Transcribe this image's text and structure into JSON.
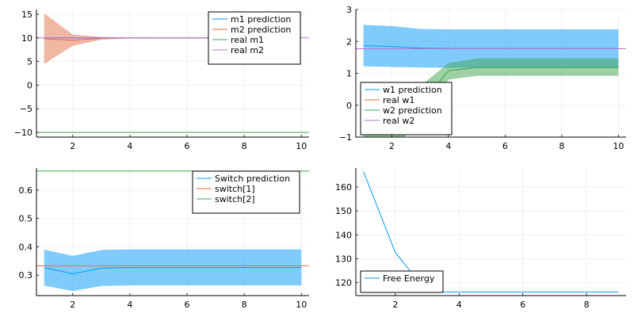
{
  "chart_data": [
    {
      "type": "line",
      "title": "",
      "xlabel": "",
      "ylabel": "",
      "xlim": [
        0.73,
        10.27
      ],
      "ylim": [
        -11.0,
        16.0
      ],
      "xticks": [
        2,
        4,
        6,
        8,
        10
      ],
      "yticks": [
        -10,
        -5,
        0,
        5,
        10,
        15
      ],
      "grid": true,
      "legend_position": "top-right",
      "series": [
        {
          "name": "m1 prediction",
          "kind": "line_band",
          "color": "#009af9",
          "x": [
            1,
            2,
            3,
            4,
            5,
            6,
            7,
            8,
            9,
            10
          ],
          "y": [
            10.0,
            10.0,
            10.0,
            10.0,
            10.0,
            10.0,
            10.0,
            10.0,
            10.0,
            10.0
          ],
          "lower": [
            9.95,
            9.95,
            9.95,
            9.95,
            9.95,
            9.95,
            9.95,
            9.95,
            9.95,
            9.95
          ],
          "upper": [
            10.05,
            10.05,
            10.05,
            10.05,
            10.05,
            10.05,
            10.05,
            10.05,
            10.05,
            10.05
          ]
        },
        {
          "name": "m2 prediction",
          "kind": "line_band",
          "color": "#e26f46",
          "x": [
            1,
            2,
            3,
            4,
            5,
            6,
            7,
            8,
            9,
            10
          ],
          "y": [
            9.8,
            9.5,
            9.9,
            10.0,
            10.0,
            10.0,
            10.0,
            10.0,
            10.0,
            10.0
          ],
          "lower": [
            4.5,
            8.3,
            9.6,
            9.9,
            9.95,
            9.95,
            9.95,
            9.95,
            9.95,
            9.95
          ],
          "upper": [
            15.2,
            10.7,
            10.2,
            10.1,
            10.05,
            10.05,
            10.05,
            10.05,
            10.05,
            10.05
          ]
        },
        {
          "name": "real m1",
          "kind": "hline",
          "color": "#3da44d",
          "y": -10
        },
        {
          "name": "real m2",
          "kind": "hline",
          "color": "#c271d2",
          "y": 10
        }
      ]
    },
    {
      "type": "line",
      "title": "",
      "xlabel": "",
      "ylabel": "",
      "xlim": [
        0.73,
        10.27
      ],
      "ylim": [
        -1,
        3
      ],
      "xticks": [
        2,
        4,
        6,
        8,
        10
      ],
      "yticks": [
        -1,
        0,
        1,
        2,
        3
      ],
      "grid": true,
      "legend_position": "bottom-left",
      "series": [
        {
          "name": "w1 prediction",
          "kind": "line_band",
          "color": "#009af9",
          "x": [
            1,
            2,
            3,
            4,
            5,
            6,
            7,
            8,
            9,
            10
          ],
          "y": [
            1.87,
            1.84,
            1.79,
            1.78,
            1.78,
            1.78,
            1.78,
            1.78,
            1.78,
            1.78
          ],
          "lower": [
            1.22,
            1.2,
            1.18,
            1.17,
            1.17,
            1.17,
            1.17,
            1.17,
            1.17,
            1.17
          ],
          "upper": [
            2.52,
            2.48,
            2.39,
            2.38,
            2.38,
            2.38,
            2.38,
            2.38,
            2.38,
            2.38
          ]
        },
        {
          "name": "real w1",
          "kind": "hline",
          "color": "#e26f46",
          "y": 1.77
        },
        {
          "name": "w2 prediction",
          "kind": "line_band",
          "color": "#3da44d",
          "x": [
            1,
            2,
            3,
            4,
            5,
            6,
            7,
            8,
            9,
            10
          ],
          "y": [
            -0.8,
            -0.5,
            0.0,
            1.08,
            1.18,
            1.18,
            1.18,
            1.18,
            1.18,
            1.18
          ],
          "lower": [
            -1.6,
            -1.3,
            -0.6,
            0.8,
            0.92,
            0.92,
            0.92,
            0.92,
            0.92,
            0.92
          ],
          "upper": [
            0.0,
            0.3,
            0.6,
            1.32,
            1.47,
            1.47,
            1.47,
            1.47,
            1.47,
            1.47
          ]
        },
        {
          "name": "real w2",
          "kind": "hline",
          "color": "#c271d2",
          "y": 1.77
        }
      ]
    },
    {
      "type": "line",
      "title": "",
      "xlabel": "",
      "ylabel": "",
      "xlim": [
        0.73,
        10.27
      ],
      "ylim": [
        0.228,
        0.678
      ],
      "xticks": [
        2,
        4,
        6,
        8,
        10
      ],
      "yticks": [
        0.3,
        0.4,
        0.5,
        0.6
      ],
      "grid": true,
      "legend_position": "top-right",
      "series": [
        {
          "name": "Switch prediction",
          "kind": "line_band",
          "color": "#009af9",
          "x": [
            1,
            2,
            3,
            4,
            5,
            6,
            7,
            8,
            9,
            10
          ],
          "y": [
            0.327,
            0.305,
            0.325,
            0.327,
            0.327,
            0.327,
            0.327,
            0.327,
            0.327,
            0.327
          ],
          "lower": [
            0.263,
            0.244,
            0.262,
            0.264,
            0.264,
            0.264,
            0.264,
            0.264,
            0.264,
            0.264
          ],
          "upper": [
            0.39,
            0.368,
            0.389,
            0.391,
            0.391,
            0.391,
            0.391,
            0.391,
            0.391,
            0.391
          ]
        },
        {
          "name": "switch[1]",
          "kind": "hline",
          "color": "#e26f46",
          "y": 0.333
        },
        {
          "name": "switch[2]",
          "kind": "hline",
          "color": "#3da44d",
          "y": 0.667
        }
      ]
    },
    {
      "type": "line",
      "title": "",
      "xlabel": "",
      "ylabel": "",
      "xlim": [
        0.76,
        9.24
      ],
      "ylim": [
        114.5,
        168.0
      ],
      "xticks": [
        2,
        4,
        6,
        8
      ],
      "yticks": [
        120,
        130,
        140,
        150,
        160
      ],
      "grid": true,
      "legend_position": "bottom-left",
      "series": [
        {
          "name": "Free Energy",
          "kind": "line",
          "color": "#009af9",
          "x": [
            1,
            2,
            3,
            4,
            5,
            6,
            7,
            8,
            9
          ],
          "y": [
            166.5,
            132.5,
            116.0,
            116.0,
            116.0,
            116.0,
            116.0,
            116.0,
            116.0
          ]
        }
      ]
    }
  ]
}
